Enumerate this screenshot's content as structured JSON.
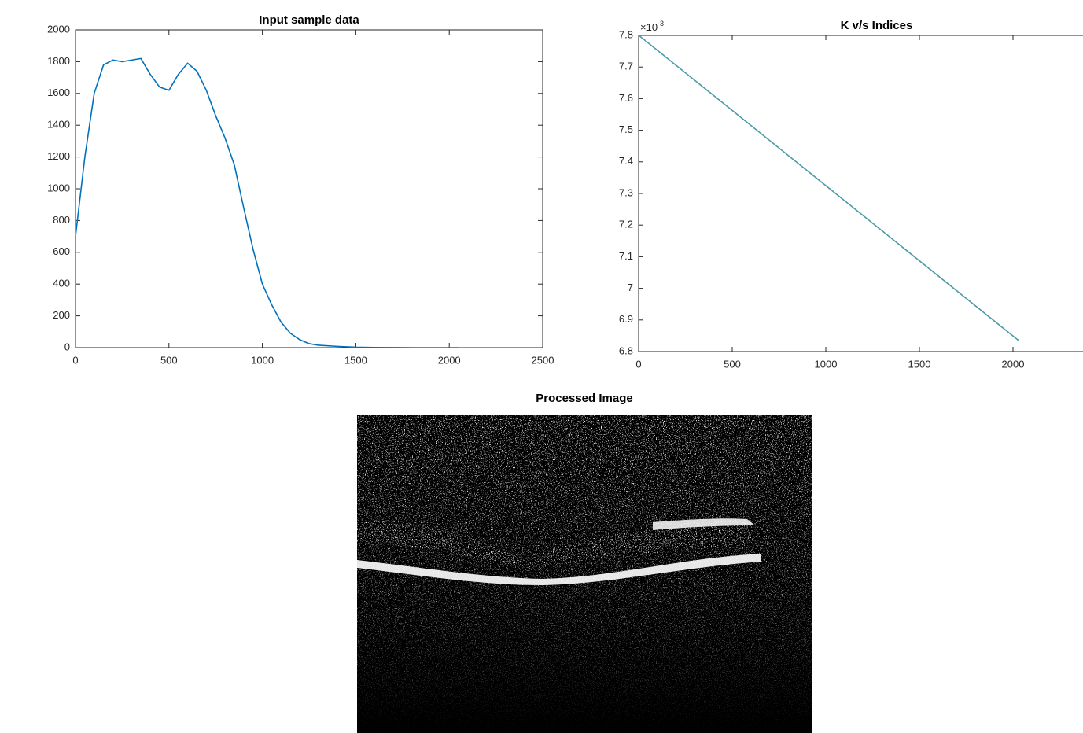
{
  "chart_data": [
    {
      "type": "line",
      "title": "Input sample data",
      "x": [
        0,
        50,
        100,
        150,
        200,
        250,
        300,
        350,
        400,
        450,
        500,
        550,
        600,
        650,
        700,
        750,
        800,
        850,
        900,
        950,
        1000,
        1050,
        1100,
        1150,
        1200,
        1250,
        1300,
        1400,
        1500,
        1600,
        1800,
        2048
      ],
      "values": [
        700,
        1200,
        1600,
        1780,
        1810,
        1800,
        1810,
        1820,
        1720,
        1640,
        1620,
        1720,
        1790,
        1740,
        1620,
        1460,
        1320,
        1150,
        880,
        620,
        400,
        270,
        160,
        90,
        50,
        25,
        15,
        8,
        3,
        1,
        0,
        0
      ],
      "color": "#0072bd",
      "xlim": [
        0,
        2500
      ],
      "xticks": [
        0,
        500,
        1000,
        1500,
        2000,
        2500
      ],
      "ylim": [
        0,
        2000
      ],
      "yticks": [
        0,
        200,
        400,
        600,
        800,
        1000,
        1200,
        1400,
        1600,
        1800,
        2000
      ]
    },
    {
      "type": "line",
      "title": "K v/s Indices",
      "y_multiplier": {
        "base": "×10",
        "exponent": "-3"
      },
      "x": [
        1,
        2030
      ],
      "values": [
        7.8,
        6.835
      ],
      "color": "#4a9aa8",
      "xlim": [
        0,
        2500
      ],
      "xticks": [
        0,
        500,
        1000,
        1500,
        2000
      ],
      "ylim": [
        6.8,
        7.8
      ],
      "yticks": [
        6.8,
        6.9,
        7,
        7.1,
        7.2,
        7.3,
        7.4,
        7.5,
        7.6,
        7.7,
        7.8
      ]
    }
  ],
  "image_panel": {
    "title": "Processed Image"
  }
}
